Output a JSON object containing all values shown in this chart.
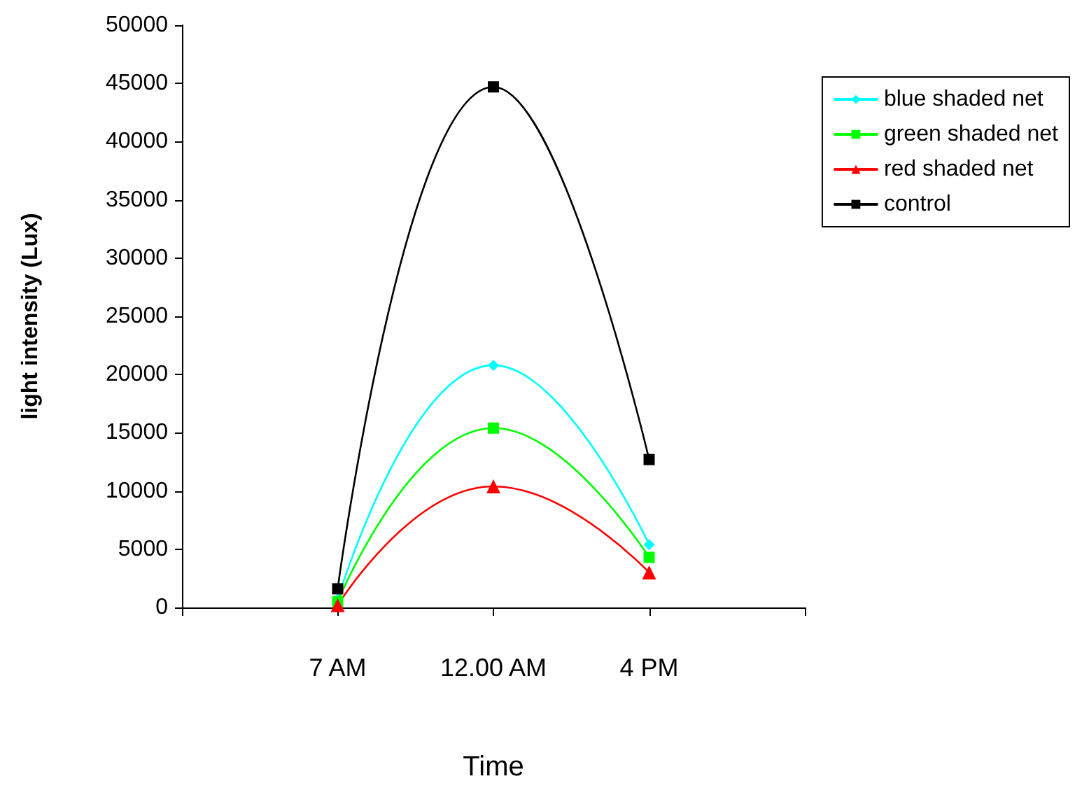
{
  "chart_data": {
    "type": "line",
    "xlabel": "Time",
    "ylabel": "light intensity (Lux)",
    "categories": [
      null,
      "7 AM",
      "12.00 AM",
      "4 PM",
      null
    ],
    "series": [
      {
        "name": "blue shaded net",
        "color": "#00ffff",
        "marker": "diamond",
        "values": [
          null,
          700,
          20800,
          5400,
          null
        ]
      },
      {
        "name": "green shaded net",
        "color": "#00ff00",
        "marker": "square",
        "values": [
          null,
          500,
          15400,
          4300,
          null
        ]
      },
      {
        "name": "red shaded net",
        "color": "#ff0000",
        "marker": "triangle",
        "values": [
          null,
          200,
          10400,
          3000,
          null
        ]
      },
      {
        "name": "control",
        "color": "#000000",
        "marker": "square",
        "values": [
          null,
          1600,
          44700,
          12700,
          null
        ]
      }
    ],
    "ylim": [
      0,
      50000
    ],
    "yticks": [
      0,
      5000,
      10000,
      15000,
      20000,
      25000,
      30000,
      35000,
      40000,
      45000,
      50000
    ],
    "grid": false,
    "legend": "top right",
    "line_style": "solid"
  }
}
